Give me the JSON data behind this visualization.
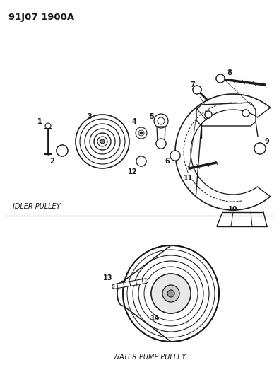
{
  "title": "91J07 1900A",
  "bg_color": "#ffffff",
  "line_color": "#1a1a1a",
  "text_color": "#1a1a1a",
  "idler_label": "IDLER PULLEY",
  "water_pump_label": "WATER PUMP PULLEY",
  "figsize": [
    3.95,
    5.33
  ],
  "dpi": 100
}
